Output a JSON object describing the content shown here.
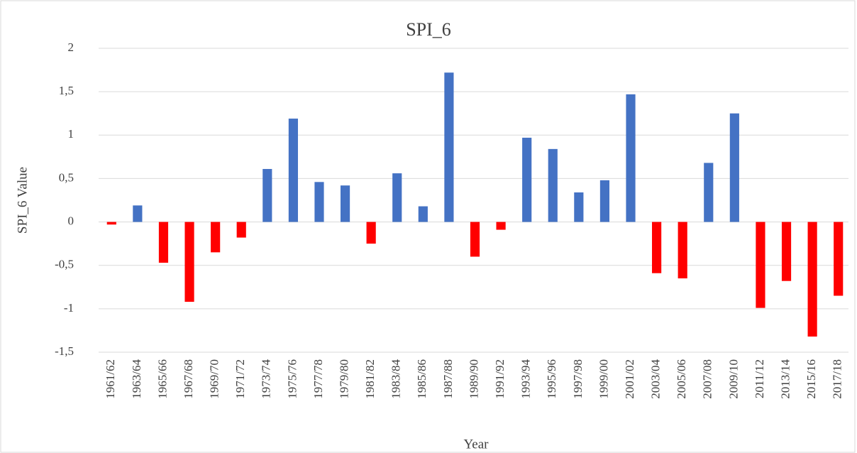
{
  "chart_data": {
    "type": "bar",
    "title": "SPI_6",
    "x_label": "Year",
    "y_label": "SPI_6 Value",
    "categories": [
      "1961/62",
      "1963/64",
      "1965/66",
      "1967/68",
      "1969/70",
      "1971/72",
      "1973/74",
      "1975/76",
      "1977/78",
      "1979/80",
      "1981/82",
      "1983/84",
      "1985/86",
      "1987/88",
      "1989/90",
      "1991/92",
      "1993/94",
      "1995/96",
      "1997/98",
      "1999/00",
      "2001/02",
      "2003/04",
      "2005/06",
      "2007/08",
      "2009/10",
      "2011/12",
      "2013/14",
      "2015/16",
      "2017/18"
    ],
    "values": [
      -0.03,
      0.19,
      -0.47,
      -0.92,
      -0.35,
      -0.18,
      0.61,
      1.19,
      0.46,
      0.42,
      -0.25,
      0.56,
      0.18,
      1.72,
      -0.4,
      -0.09,
      0.97,
      0.84,
      0.34,
      0.48,
      1.47,
      -0.59,
      -0.65,
      0.68,
      1.25,
      -0.99,
      -0.68,
      -1.32,
      -0.85
    ],
    "color": "#4472c4",
    "negative_color": "#ff0000",
    "ylim": [
      -1.5,
      2
    ],
    "yticks": [
      {
        "value": -1.5,
        "label": "-1,5"
      },
      -1,
      {
        "value": -0.5,
        "label": "-0,5"
      },
      0,
      {
        "value": 0.5,
        "label": "0,5"
      },
      1,
      {
        "value": 1.5,
        "label": "1,5"
      },
      2
    ],
    "grid": true
  }
}
